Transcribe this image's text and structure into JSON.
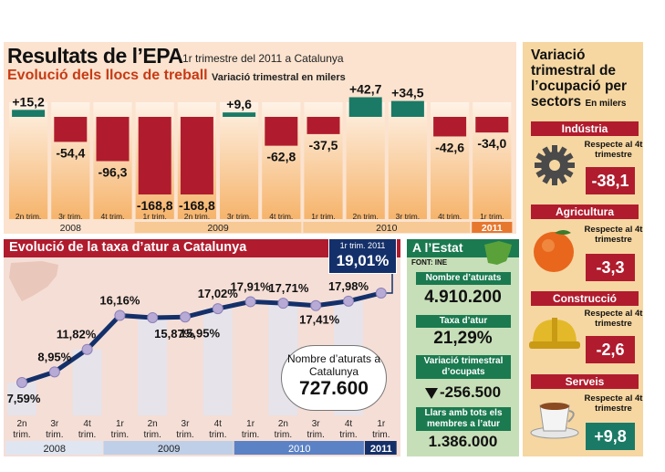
{
  "header": {
    "title": "Resultats de l’EPA",
    "title_sub": "1r trimestre del 2011 a Catalunya",
    "subtitle": "Evolució dels llocs de treball",
    "subtitle_unit": "Variació trimestral en milers"
  },
  "bottom": {
    "title": "Evolució de la taxa d’atur a Catalunya",
    "latest_label": "1r trim. 2011",
    "latest_value": "19,01%",
    "unemployed_label": "Nombre d’aturats a Catalunya",
    "unemployed_value": "727.600"
  },
  "estat": {
    "title": "A l’Estat",
    "source": "FONT: INE",
    "unemployed_label": "Nombre d’aturats",
    "unemployed_value": "4.910.200",
    "rate_label": "Taxa d’atur",
    "rate_value": "21,29%",
    "employed_label": "Variació trimestral d’ocupats",
    "employed_value": "-256.500",
    "households_label": "Llars amb tots els membres a l’atur",
    "households_value": "1.386.000"
  },
  "sectors": {
    "title": "Variació trimestral de l’ocupació per sectors",
    "unit": "En milers",
    "items": [
      {
        "name": "Indústria",
        "note": "Respecte al 4t trimestre",
        "value": "-38,1",
        "icon": "gear-icon"
      },
      {
        "name": "Agricultura",
        "note": "Respecte al 4t trimestre",
        "value": "-3,3",
        "icon": "orange-fruit-icon"
      },
      {
        "name": "Construcció",
        "note": "Respecte al 4t trimestre",
        "value": "-2,6",
        "icon": "hard-hat-icon"
      },
      {
        "name": "Serveis",
        "note": "Respecte al 4t trimestre",
        "value": "+9,8",
        "icon": "coffee-cup-icon"
      }
    ]
  },
  "colors": {
    "negative": "#b01c2e",
    "positive": "#1a7a66",
    "line": "#14306a",
    "accent": "#c63a15"
  },
  "chart_data": [
    {
      "type": "bar",
      "title": "Evolució dels llocs de treball",
      "ylabel": "Variació trimestral en milers",
      "categories": [
        "2n trim.",
        "3r trim.",
        "4t trim.",
        "1r trim.",
        "2n trim.",
        "3r trim.",
        "4t trim.",
        "1r trim.",
        "2n trim.",
        "3r trim.",
        "4t trim.",
        "1r trim."
      ],
      "years": [
        {
          "label": "2008",
          "span": 3
        },
        {
          "label": "2009",
          "span": 4
        },
        {
          "label": "2010",
          "span": 4
        },
        {
          "label": "2011",
          "span": 1
        }
      ],
      "values": [
        15.2,
        -54.4,
        -96.3,
        -168.8,
        -168.8,
        9.6,
        -62.8,
        -37.5,
        42.7,
        34.5,
        -42.6,
        -34.0
      ],
      "labels": [
        "+15,2",
        "-54,4",
        "-96,3",
        "-168,8",
        "-168,8",
        "+9,6",
        "-62,8",
        "-37,5",
        "+42,7",
        "+34,5",
        "-42,6",
        "-34,0"
      ]
    },
    {
      "type": "line",
      "title": "Evolució de la taxa d’atur a Catalunya",
      "categories": [
        "2n trim.",
        "3r trim.",
        "4t trim.",
        "1r trim.",
        "2n trim.",
        "3r trim.",
        "4t trim.",
        "1r trim.",
        "2n trim.",
        "3r trim.",
        "4t trim.",
        "1r trim."
      ],
      "years": [
        {
          "label": "2008",
          "span": 3
        },
        {
          "label": "2009",
          "span": 4
        },
        {
          "label": "2010",
          "span": 4
        },
        {
          "label": "2011",
          "span": 1
        }
      ],
      "values": [
        7.59,
        8.95,
        11.82,
        16.16,
        15.87,
        15.95,
        17.02,
        17.91,
        17.71,
        17.41,
        17.98,
        19.01
      ],
      "labels": [
        "7,59%",
        "8,95%",
        "11,82%",
        "16,16%",
        "15,87%",
        "15,95%",
        "17,02%",
        "17,91%",
        "17,71%",
        "17,41%",
        "17,98%",
        "19,01%"
      ]
    }
  ]
}
